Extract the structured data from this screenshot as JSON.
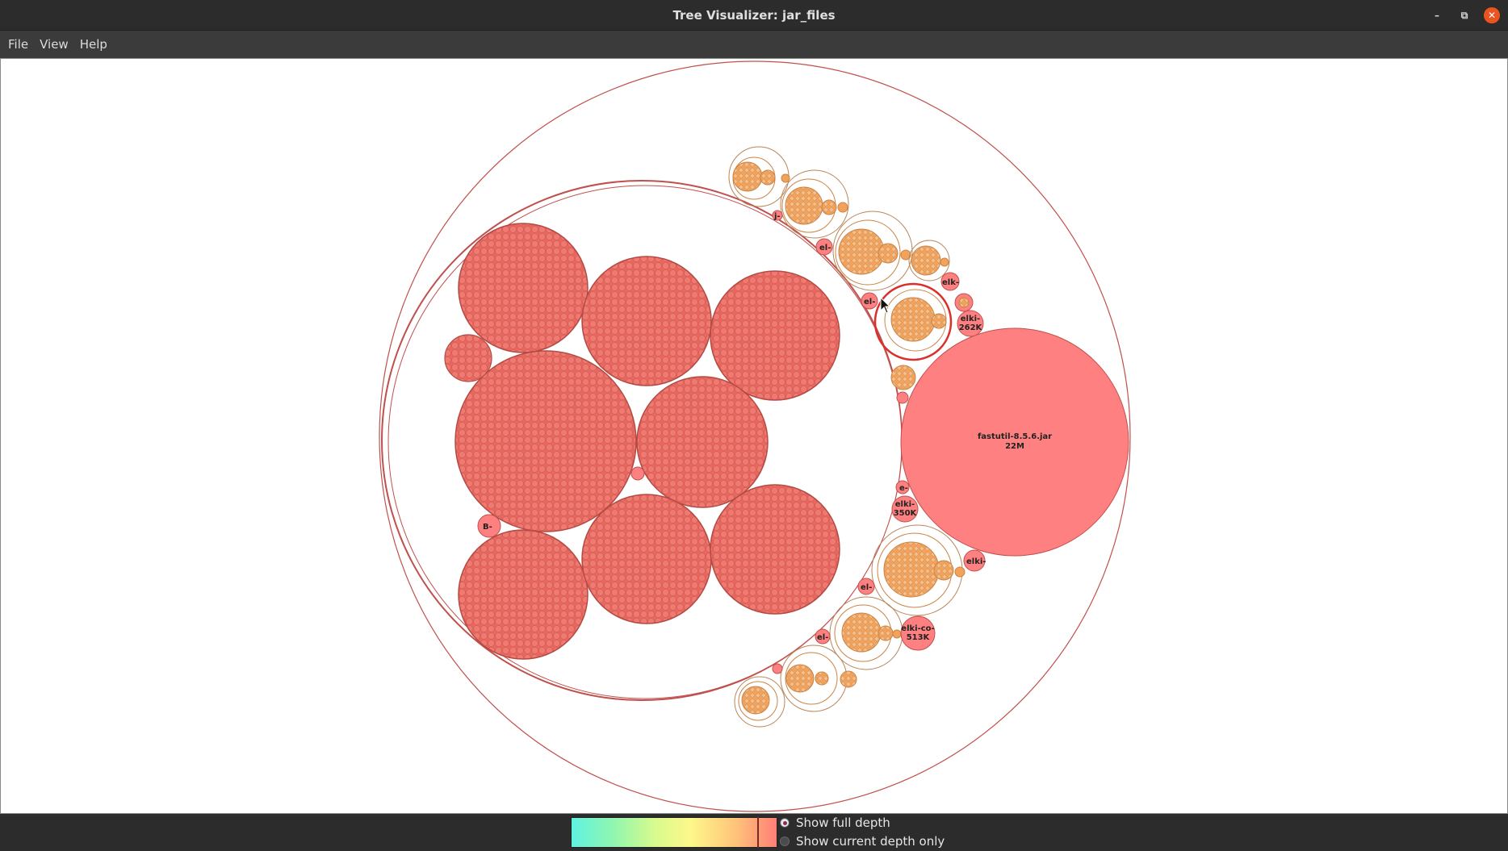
{
  "window": {
    "title": "Tree Visualizer: jar_files"
  },
  "menu": [
    "File",
    "View",
    "Help"
  ],
  "labels": {
    "fastutil_name": "fastutil-8.5.6.jar",
    "fastutil_size": "22M",
    "elki_262_name": "elki-",
    "elki_262_size": "262K",
    "elki_350_name": "elki-",
    "elki_350_size": "350K",
    "elki_co_name": "elki-co-",
    "elki_co_size": "513K",
    "elk_small": "elk-",
    "elki_small": "elki-",
    "el_1": "el-",
    "el_2": "el-",
    "el_3": "el-",
    "el_4": "el-",
    "e_small": "e-",
    "j_small": "j-",
    "b_small": "B-"
  },
  "options": {
    "full_depth": "Show full depth",
    "current_depth": "Show current depth only",
    "selected": "full_depth"
  },
  "colors": {
    "node_fill": "#ff8080",
    "dense_fill": "#e8675f",
    "package_fill": "#f5a35a",
    "outline": "#c0504d"
  }
}
